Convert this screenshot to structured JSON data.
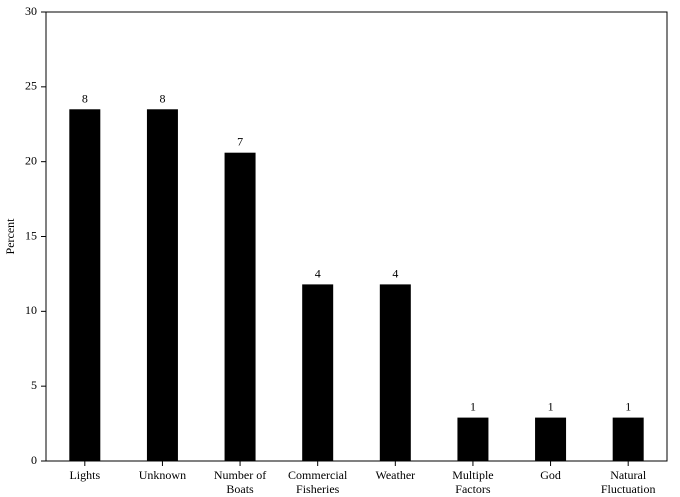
{
  "chart_data": {
    "type": "bar",
    "title": "",
    "xlabel": "",
    "ylabel": "Percent",
    "ylim": [
      0,
      30
    ],
    "yticks": [
      0,
      5,
      10,
      15,
      20,
      25,
      30
    ],
    "grid": false,
    "legend": "none",
    "bar_color": "#000000",
    "categories": [
      [
        "Lights"
      ],
      [
        "Unknown"
      ],
      [
        "Number of",
        "Boats"
      ],
      [
        "Commercial",
        "Fisheries"
      ],
      [
        "Weather"
      ],
      [
        "Multiple",
        "Factors"
      ],
      [
        "God"
      ],
      [
        "Natural",
        "Fluctuation"
      ]
    ],
    "values": [
      23.5,
      23.5,
      20.6,
      11.8,
      11.8,
      2.9,
      2.9,
      2.9
    ],
    "data_labels": [
      "8",
      "8",
      "7",
      "4",
      "4",
      "1",
      "1",
      "1"
    ]
  }
}
